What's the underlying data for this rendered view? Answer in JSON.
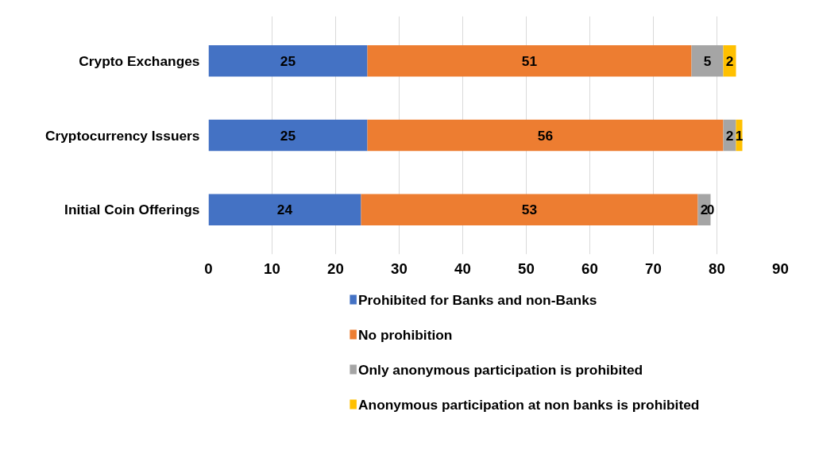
{
  "chart_data": {
    "type": "bar",
    "orientation": "horizontal",
    "stacked": true,
    "categories": [
      "Crypto Exchanges",
      "Cryptocurrency Issuers",
      "Initial Coin Offerings"
    ],
    "series": [
      {
        "name": "Prohibited for Banks and non-Banks",
        "color": "#4472c4",
        "values": [
          25,
          25,
          24
        ]
      },
      {
        "name": "No prohibition",
        "color": "#ed7d31",
        "values": [
          51,
          56,
          53
        ]
      },
      {
        "name": "Only anonymous participation is prohibited",
        "color": "#a5a5a5",
        "values": [
          5,
          2,
          2
        ]
      },
      {
        "name": "Anonymous participation at non banks is prohibited",
        "color": "#ffc000",
        "values": [
          2,
          1,
          0
        ]
      }
    ],
    "xlim": [
      0,
      90
    ],
    "xticks": [
      0,
      10,
      20,
      30,
      40,
      50,
      60,
      70,
      80,
      90
    ],
    "grid": "x",
    "legend": "bottom",
    "data_labels": true
  }
}
